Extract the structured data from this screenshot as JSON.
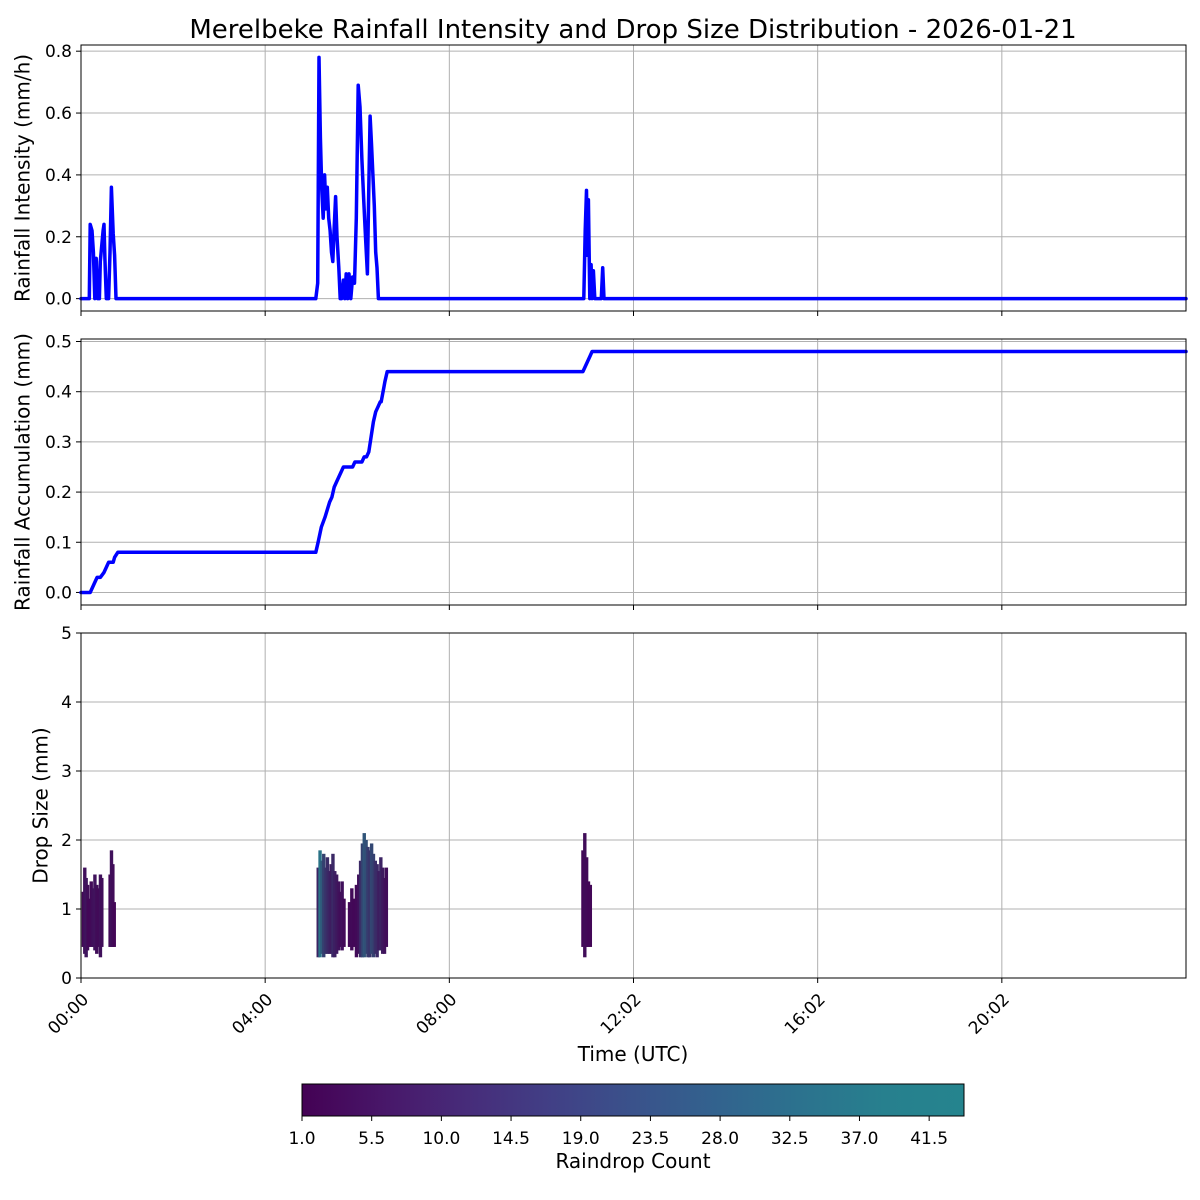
{
  "title": "Merelbeke Rainfall Intensity and Drop Size Distribution - 2026-01-21",
  "colors": {
    "line": "#0000ff",
    "grid": "#b0b0b0",
    "viridis_min": "#440154",
    "viridis_max": "#25848e"
  },
  "x_axis": {
    "label": "Time (UTC)",
    "unit": "hours since 00:00 UTC",
    "ticks": [
      {
        "label": "00:00",
        "x": 0.0
      },
      {
        "label": "04:00",
        "x": 4.0
      },
      {
        "label": "08:00",
        "x": 8.0
      },
      {
        "label": "12:02",
        "x": 12.0
      },
      {
        "label": "16:02",
        "x": 16.0
      },
      {
        "label": "20:02",
        "x": 20.0
      }
    ],
    "xlim": [
      0,
      24
    ]
  },
  "chart_data": [
    {
      "type": "line",
      "ylabel": "Rainfall Intensity (mm/h)",
      "ylim": [
        -0.04,
        0.82
      ],
      "yticks": [
        "0.0",
        "0.2",
        "0.4",
        "0.6",
        "0.8"
      ],
      "grid": true,
      "x": [
        0.0,
        0.18,
        0.2,
        0.24,
        0.27,
        0.3,
        0.33,
        0.36,
        0.4,
        0.42,
        0.45,
        0.48,
        0.5,
        0.52,
        0.55,
        0.58,
        0.6,
        0.63,
        0.66,
        0.7,
        0.73,
        0.76,
        0.8,
        0.83,
        0.86,
        0.9,
        0.92,
        0.94,
        5.1,
        5.14,
        5.17,
        5.2,
        5.23,
        5.26,
        5.29,
        5.32,
        5.35,
        5.38,
        5.41,
        5.44,
        5.47,
        5.5,
        5.53,
        5.56,
        5.6,
        5.63,
        5.66,
        5.7,
        5.73,
        5.76,
        5.79,
        5.82,
        5.86,
        5.9,
        5.94,
        5.98,
        6.02,
        6.06,
        6.1,
        6.14,
        6.18,
        6.22,
        6.25,
        6.28,
        6.31,
        6.34,
        6.37,
        6.4,
        6.43,
        6.46,
        6.5,
        6.53,
        6.56,
        6.6,
        6.63,
        6.66,
        6.7,
        6.73,
        10.92,
        10.95,
        10.98,
        11.0,
        11.02,
        11.05,
        11.08,
        11.1,
        11.13,
        11.16,
        11.2,
        11.23,
        11.26,
        11.3,
        11.33,
        11.36,
        11.38,
        24.0
      ],
      "y": [
        0,
        0,
        0.24,
        0.22,
        0.15,
        0.0,
        0.13,
        0.0,
        0.0,
        0.12,
        0.17,
        0.22,
        0.24,
        0.13,
        0.0,
        0.0,
        0.0,
        0.15,
        0.36,
        0.21,
        0.14,
        0.0,
        0.0,
        0.0,
        0.0,
        0.0,
        0.0,
        0.0,
        0,
        0.05,
        0.78,
        0.52,
        0.35,
        0.26,
        0.4,
        0.29,
        0.36,
        0.26,
        0.22,
        0.15,
        0.12,
        0.23,
        0.33,
        0.2,
        0.1,
        0.0,
        0.0,
        0.06,
        0.0,
        0.08,
        0.0,
        0.08,
        0.0,
        0.07,
        0.05,
        0.26,
        0.69,
        0.62,
        0.45,
        0.32,
        0.2,
        0.08,
        0.36,
        0.59,
        0.5,
        0.4,
        0.3,
        0.15,
        0.1,
        0.0,
        0.0,
        0.0,
        0.0,
        0.0,
        0.0,
        0.0,
        0.0,
        0.0,
        0,
        0.22,
        0.35,
        0.14,
        0.32,
        0.0,
        0.11,
        0.0,
        0.09,
        0.0,
        0.0,
        0.0,
        0.0,
        0.0,
        0.1,
        0.0,
        0.0,
        0.0
      ]
    },
    {
      "type": "line",
      "ylabel": "Rainfall Accumulation (mm)",
      "ylim": [
        -0.025,
        0.505
      ],
      "yticks": [
        "0.0",
        "0.1",
        "0.2",
        "0.3",
        "0.4",
        "0.5"
      ],
      "grid": true,
      "x": [
        0.0,
        0.2,
        0.3,
        0.35,
        0.42,
        0.5,
        0.55,
        0.6,
        0.65,
        0.7,
        0.73,
        0.8,
        0.95,
        5.1,
        5.15,
        5.22,
        5.3,
        5.4,
        5.45,
        5.5,
        5.55,
        5.6,
        5.65,
        5.7,
        5.75,
        5.8,
        5.9,
        5.95,
        6.05,
        6.1,
        6.15,
        6.2,
        6.25,
        6.3,
        6.35,
        6.4,
        6.45,
        6.5,
        6.52,
        6.58,
        6.6,
        6.65,
        6.7,
        10.9,
        10.95,
        11.0,
        11.05,
        11.1,
        24.0
      ],
      "y": [
        0.0,
        0.0,
        0.02,
        0.03,
        0.03,
        0.04,
        0.05,
        0.06,
        0.06,
        0.06,
        0.07,
        0.08,
        0.08,
        0.08,
        0.1,
        0.13,
        0.15,
        0.18,
        0.19,
        0.21,
        0.22,
        0.23,
        0.24,
        0.25,
        0.25,
        0.25,
        0.25,
        0.26,
        0.26,
        0.26,
        0.27,
        0.27,
        0.28,
        0.31,
        0.34,
        0.36,
        0.37,
        0.38,
        0.38,
        0.41,
        0.42,
        0.44,
        0.44,
        0.44,
        0.45,
        0.46,
        0.47,
        0.48,
        0.48
      ]
    },
    {
      "type": "heatmap",
      "ylabel": "Drop Size (mm)",
      "ylim": [
        0,
        5
      ],
      "yticks": [
        "0",
        "1",
        "2",
        "3",
        "4",
        "5"
      ],
      "grid": true,
      "colorbar": {
        "label": "Raindrop Count",
        "range": [
          1.0,
          43.75
        ],
        "ticks": [
          "1.0",
          "5.5",
          "10.0",
          "14.5",
          "19.0",
          "23.5",
          "28.0",
          "32.5",
          "37.0",
          "41.5"
        ]
      },
      "columns": [
        {
          "x": 0.05,
          "y0": 0.45,
          "y1": 1.25,
          "count": 3
        },
        {
          "x": 0.08,
          "y0": 0.35,
          "y1": 1.6,
          "count": 6
        },
        {
          "x": 0.11,
          "y0": 0.3,
          "y1": 1.45,
          "count": 8
        },
        {
          "x": 0.14,
          "y0": 0.4,
          "y1": 1.35,
          "count": 5
        },
        {
          "x": 0.17,
          "y0": 0.45,
          "y1": 1.15,
          "count": 3
        },
        {
          "x": 0.22,
          "y0": 0.45,
          "y1": 1.4,
          "count": 4
        },
        {
          "x": 0.26,
          "y0": 0.45,
          "y1": 1.3,
          "count": 6
        },
        {
          "x": 0.3,
          "y0": 0.4,
          "y1": 1.5,
          "count": 7
        },
        {
          "x": 0.34,
          "y0": 0.35,
          "y1": 1.35,
          "count": 5
        },
        {
          "x": 0.38,
          "y0": 0.45,
          "y1": 1.3,
          "count": 4
        },
        {
          "x": 0.42,
          "y0": 0.3,
          "y1": 1.5,
          "count": 6
        },
        {
          "x": 0.45,
          "y0": 0.45,
          "y1": 1.45,
          "count": 5
        },
        {
          "x": 0.63,
          "y0": 0.45,
          "y1": 1.5,
          "count": 3
        },
        {
          "x": 0.66,
          "y0": 0.45,
          "y1": 1.85,
          "count": 6
        },
        {
          "x": 0.69,
          "y0": 0.45,
          "y1": 1.65,
          "count": 5
        },
        {
          "x": 0.72,
          "y0": 0.45,
          "y1": 1.1,
          "count": 3
        },
        {
          "x": 5.15,
          "y0": 0.3,
          "y1": 1.6,
          "count": 12
        },
        {
          "x": 5.19,
          "y0": 0.3,
          "y1": 1.85,
          "count": 38
        },
        {
          "x": 5.23,
          "y0": 0.35,
          "y1": 1.7,
          "count": 30
        },
        {
          "x": 5.27,
          "y0": 0.3,
          "y1": 1.8,
          "count": 22
        },
        {
          "x": 5.31,
          "y0": 0.35,
          "y1": 1.6,
          "count": 18
        },
        {
          "x": 5.35,
          "y0": 0.35,
          "y1": 1.75,
          "count": 15
        },
        {
          "x": 5.39,
          "y0": 0.35,
          "y1": 1.55,
          "count": 12
        },
        {
          "x": 5.43,
          "y0": 0.35,
          "y1": 1.65,
          "count": 10
        },
        {
          "x": 5.47,
          "y0": 0.3,
          "y1": 1.8,
          "count": 14
        },
        {
          "x": 5.51,
          "y0": 0.3,
          "y1": 1.55,
          "count": 11
        },
        {
          "x": 5.55,
          "y0": 0.35,
          "y1": 1.5,
          "count": 9
        },
        {
          "x": 5.59,
          "y0": 0.4,
          "y1": 1.4,
          "count": 7
        },
        {
          "x": 5.63,
          "y0": 0.45,
          "y1": 1.25,
          "count": 5
        },
        {
          "x": 5.67,
          "y0": 0.4,
          "y1": 1.4,
          "count": 6
        },
        {
          "x": 5.71,
          "y0": 0.45,
          "y1": 1.15,
          "count": 4
        },
        {
          "x": 5.83,
          "y0": 0.45,
          "y1": 1.1,
          "count": 3
        },
        {
          "x": 5.88,
          "y0": 0.4,
          "y1": 1.3,
          "count": 4
        },
        {
          "x": 5.93,
          "y0": 0.45,
          "y1": 1.15,
          "count": 3
        },
        {
          "x": 5.98,
          "y0": 0.3,
          "y1": 1.35,
          "count": 4
        },
        {
          "x": 6.03,
          "y0": 0.35,
          "y1": 1.5,
          "count": 6
        },
        {
          "x": 6.07,
          "y0": 0.3,
          "y1": 1.7,
          "count": 14
        },
        {
          "x": 6.11,
          "y0": 0.3,
          "y1": 1.95,
          "count": 22
        },
        {
          "x": 6.15,
          "y0": 0.3,
          "y1": 2.1,
          "count": 28
        },
        {
          "x": 6.19,
          "y0": 0.35,
          "y1": 2.0,
          "count": 26
        },
        {
          "x": 6.23,
          "y0": 0.3,
          "y1": 1.9,
          "count": 20
        },
        {
          "x": 6.27,
          "y0": 0.3,
          "y1": 1.85,
          "count": 18
        },
        {
          "x": 6.31,
          "y0": 0.35,
          "y1": 1.95,
          "count": 24
        },
        {
          "x": 6.35,
          "y0": 0.3,
          "y1": 1.8,
          "count": 22
        },
        {
          "x": 6.39,
          "y0": 0.35,
          "y1": 1.7,
          "count": 16
        },
        {
          "x": 6.43,
          "y0": 0.3,
          "y1": 1.65,
          "count": 14
        },
        {
          "x": 6.47,
          "y0": 0.4,
          "y1": 1.55,
          "count": 10
        },
        {
          "x": 6.51,
          "y0": 0.4,
          "y1": 1.75,
          "count": 12
        },
        {
          "x": 6.55,
          "y0": 0.35,
          "y1": 1.6,
          "count": 9
        },
        {
          "x": 6.59,
          "y0": 0.35,
          "y1": 1.45,
          "count": 7
        },
        {
          "x": 6.63,
          "y0": 0.45,
          "y1": 1.6,
          "count": 5
        },
        {
          "x": 10.9,
          "y0": 0.45,
          "y1": 1.85,
          "count": 3
        },
        {
          "x": 10.94,
          "y0": 0.3,
          "y1": 2.1,
          "count": 5
        },
        {
          "x": 10.98,
          "y0": 0.45,
          "y1": 1.75,
          "count": 4
        },
        {
          "x": 11.02,
          "y0": 0.45,
          "y1": 1.4,
          "count": 3
        },
        {
          "x": 11.06,
          "y0": 0.45,
          "y1": 1.35,
          "count": 3
        }
      ]
    }
  ]
}
